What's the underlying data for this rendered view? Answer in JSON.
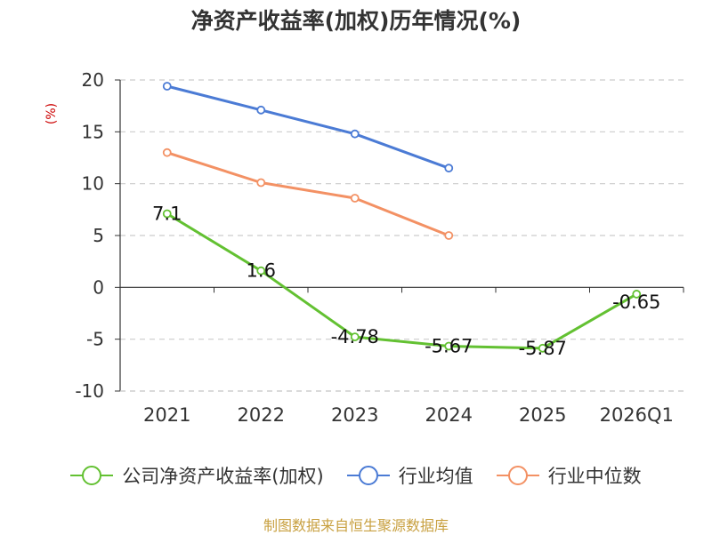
{
  "colors": {
    "company": "#63c132",
    "industry_avg": "#4b7bd5",
    "industry_median": "#f39164",
    "ylabel": "#cc0000",
    "source": "#c8a040",
    "axis": "#333333",
    "grid": "#cccccc"
  },
  "chart_data": {
    "type": "line",
    "title": "净资产收益率(加权)历年情况(%)",
    "xlabel": "",
    "ylabel": "(%)",
    "categories": [
      "2021",
      "2022",
      "2023",
      "2024",
      "2025",
      "2026Q1"
    ],
    "y_ticks": [
      20,
      15,
      10,
      5,
      0,
      -5,
      -10
    ],
    "ylim": [
      -10,
      20
    ],
    "grid": "horizontal dashed",
    "legend_position": "bottom",
    "series": [
      {
        "name": "公司净资产收益率(加权)",
        "key": "company",
        "values": [
          7.1,
          1.6,
          -4.78,
          -5.67,
          -5.87,
          -0.65
        ],
        "data_labels": [
          "7.1",
          "1.6",
          "-4.78",
          "-5.67",
          "-5.87",
          "-0.65"
        ]
      },
      {
        "name": "行业均值",
        "key": "industry_avg",
        "values": [
          19.4,
          17.1,
          14.8,
          11.5,
          null,
          null
        ]
      },
      {
        "name": "行业中位数",
        "key": "industry_median",
        "values": [
          13.0,
          10.1,
          8.6,
          5.0,
          null,
          null
        ]
      }
    ]
  },
  "source_text": "制图数据来自恒生聚源数据库"
}
